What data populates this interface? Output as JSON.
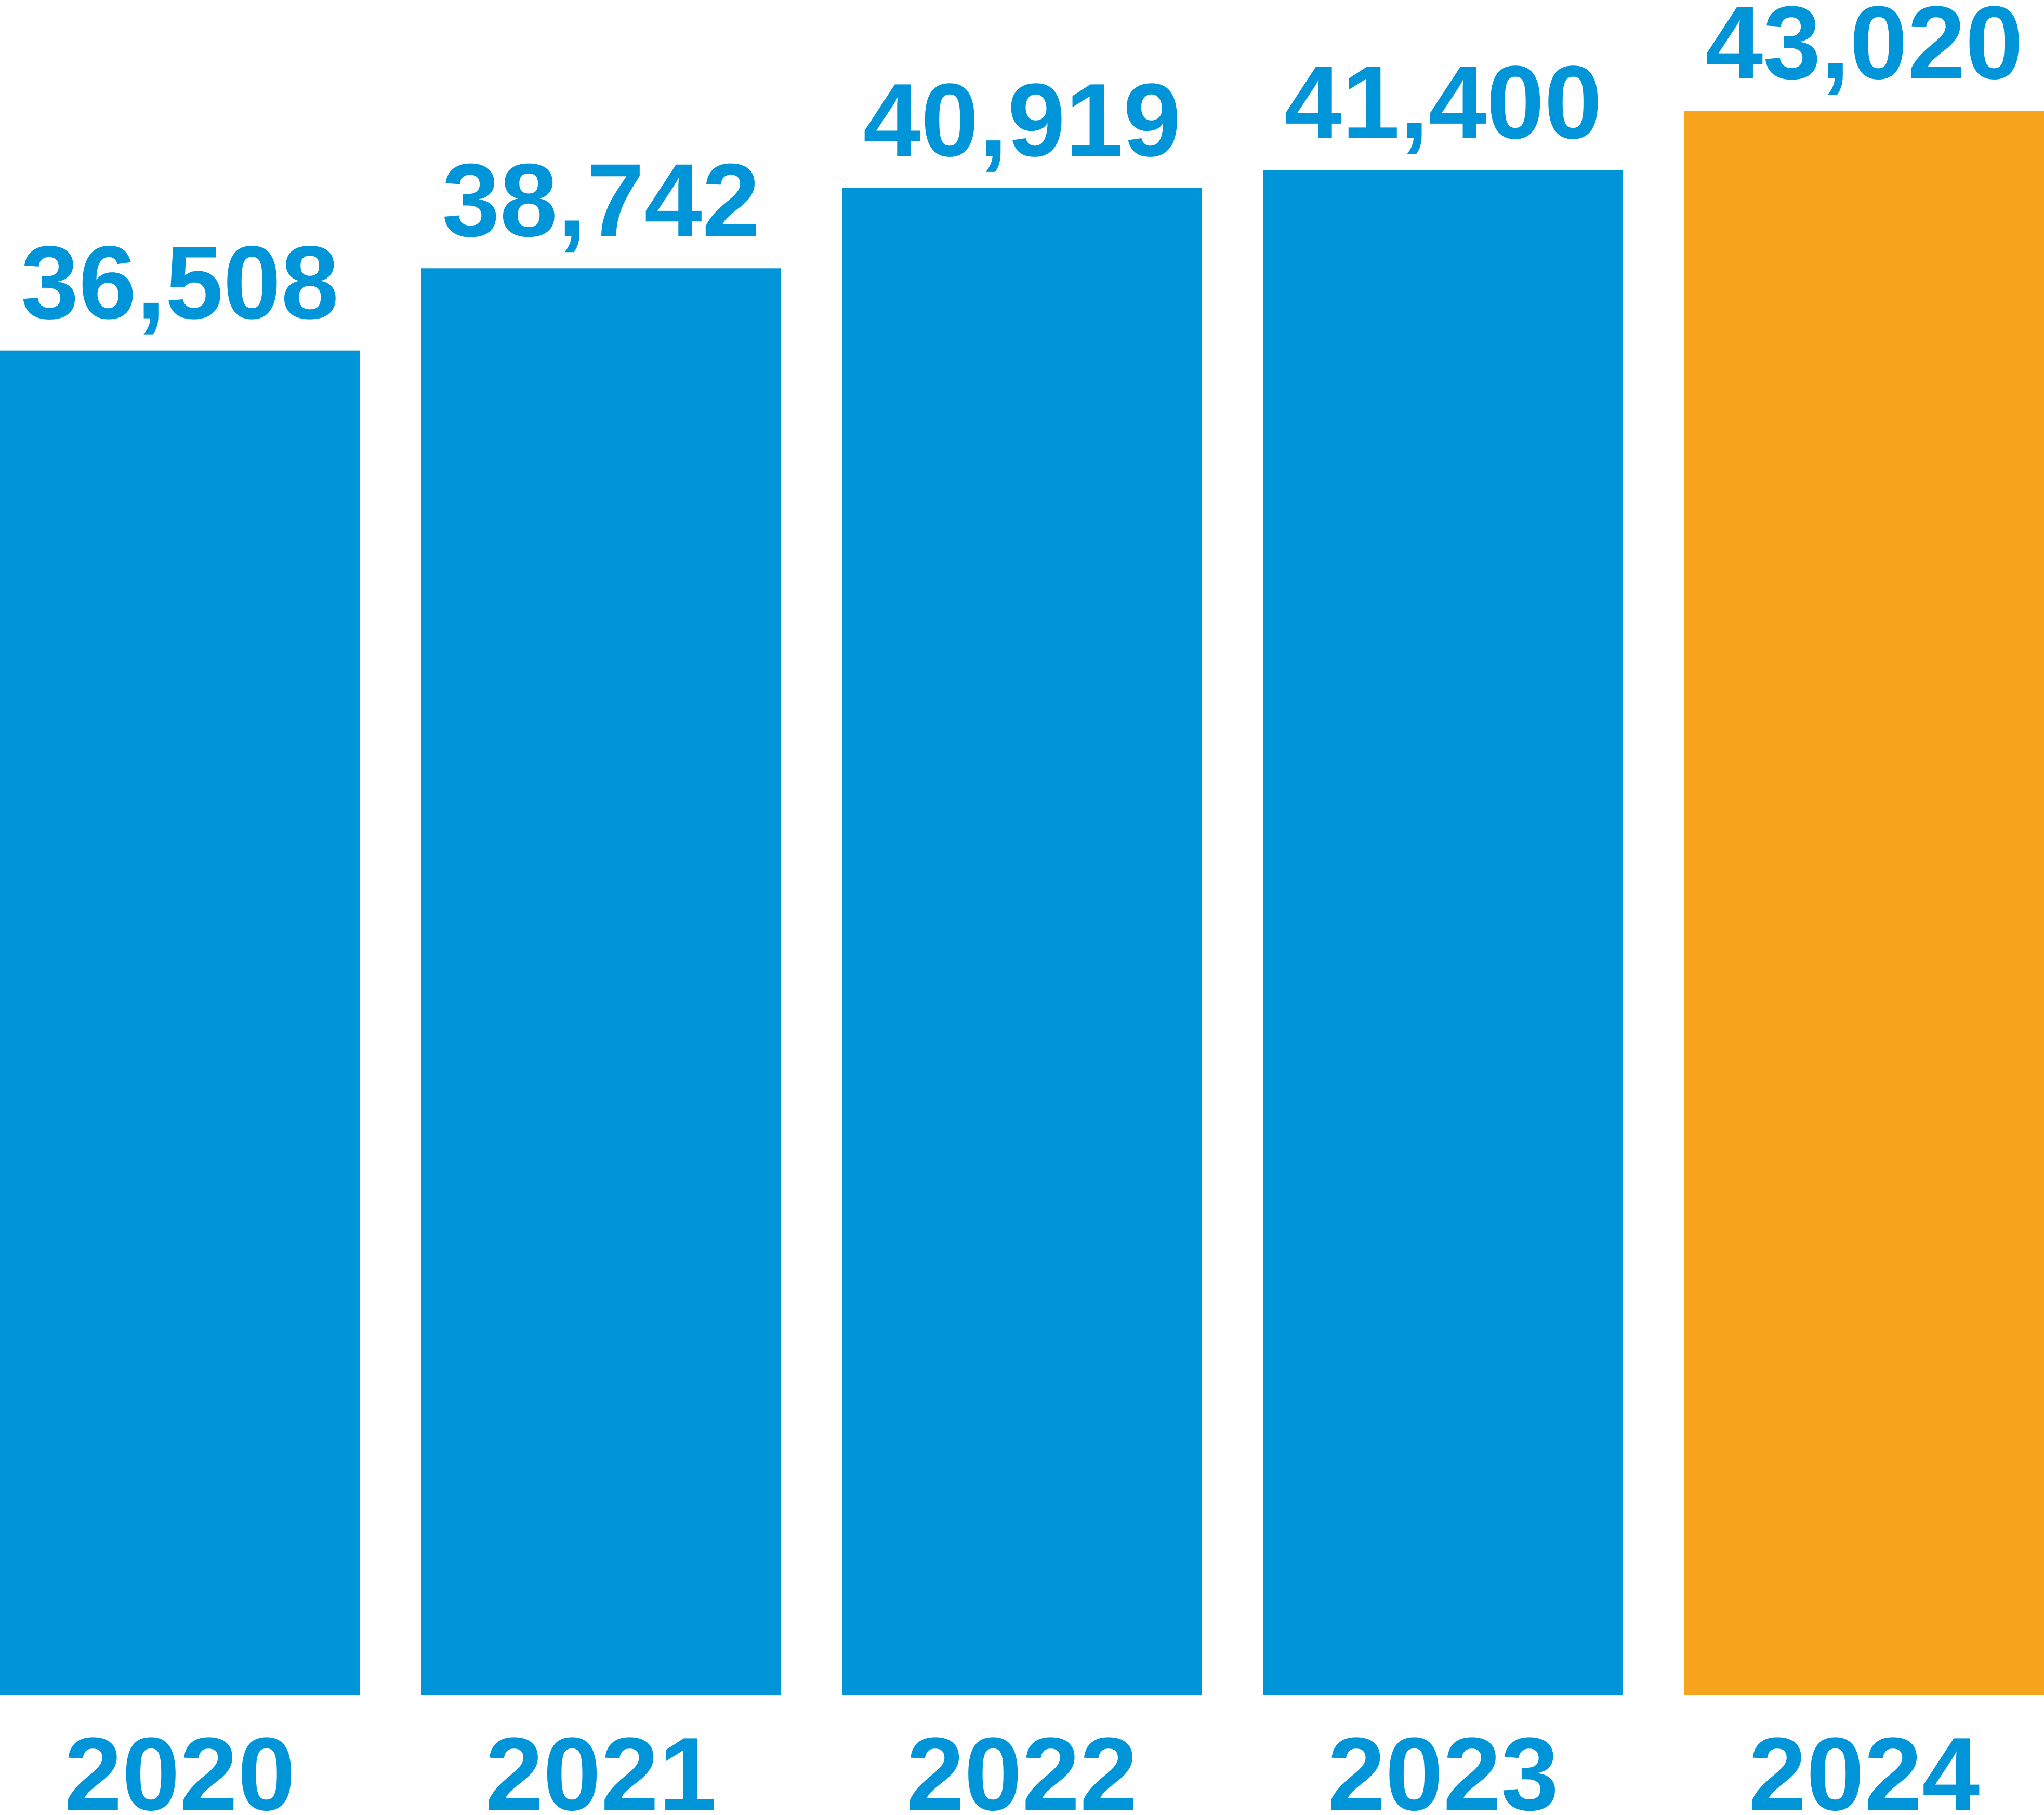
{
  "chart_data": {
    "type": "bar",
    "categories": [
      "2020",
      "2021",
      "2022",
      "2023",
      "2024"
    ],
    "values": [
      36508,
      38742,
      40919,
      41400,
      43020
    ],
    "value_labels": [
      "36,508",
      "38,742",
      "40,919",
      "41,400",
      "43,020"
    ],
    "colors": [
      "#0095d9",
      "#0095d9",
      "#0095d9",
      "#0095d9",
      "#f7a51c"
    ],
    "label_color": "#0095d9"
  }
}
